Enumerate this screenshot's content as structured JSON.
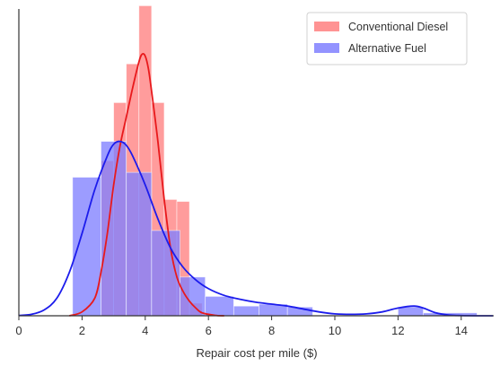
{
  "chart_data": {
    "type": "histogram_kde",
    "xlabel": "Repair cost per mile ($)",
    "ylabel": "",
    "xlim": [
      0,
      15
    ],
    "x_ticks": [
      0,
      2,
      4,
      6,
      8,
      10,
      12,
      14
    ],
    "grid": false,
    "legend_placement": "top-right",
    "series": [
      {
        "name": "Conventional Diesel",
        "hist_color": "#ff8080",
        "kde_color": "#e8191c",
        "bins": [
          {
            "x0": 2.6,
            "x1": 3.0,
            "height": 0.16
          },
          {
            "x0": 3.0,
            "x1": 3.4,
            "height": 0.22
          },
          {
            "x0": 3.4,
            "x1": 3.8,
            "height": 0.26
          },
          {
            "x0": 3.8,
            "x1": 4.2,
            "height": 0.32
          },
          {
            "x0": 4.2,
            "x1": 4.6,
            "height": 0.22
          },
          {
            "x0": 4.6,
            "x1": 5.0,
            "height": 0.12
          },
          {
            "x0": 5.0,
            "x1": 5.4,
            "height": 0.118
          },
          {
            "x0": 5.4,
            "x1": 5.8,
            "height": 0.013
          }
        ],
        "kde": [
          [
            1.6,
            0
          ],
          [
            2.0,
            0.004
          ],
          [
            2.4,
            0.018
          ],
          [
            2.6,
            0.045
          ],
          [
            2.8,
            0.085
          ],
          [
            3.0,
            0.135
          ],
          [
            3.2,
            0.175
          ],
          [
            3.4,
            0.205
          ],
          [
            3.6,
            0.235
          ],
          [
            3.8,
            0.262
          ],
          [
            3.9,
            0.27
          ],
          [
            4.0,
            0.268
          ],
          [
            4.1,
            0.255
          ],
          [
            4.2,
            0.232
          ],
          [
            4.4,
            0.18
          ],
          [
            4.6,
            0.12
          ],
          [
            4.8,
            0.07
          ],
          [
            5.0,
            0.04
          ],
          [
            5.2,
            0.025
          ],
          [
            5.4,
            0.015
          ],
          [
            5.6,
            0.008
          ],
          [
            5.8,
            0.003
          ],
          [
            6.2,
            0.0005
          ],
          [
            6.5,
            0
          ]
        ]
      },
      {
        "name": "Alternative Fuel",
        "hist_color": "#8080ff",
        "kde_color": "#1c1cec",
        "bins": [
          {
            "x0": 1.7,
            "x1": 2.6,
            "height": 0.143
          },
          {
            "x0": 2.6,
            "x1": 3.4,
            "height": 0.18
          },
          {
            "x0": 3.4,
            "x1": 4.2,
            "height": 0.148
          },
          {
            "x0": 4.2,
            "x1": 5.1,
            "height": 0.088
          },
          {
            "x0": 5.1,
            "x1": 5.9,
            "height": 0.04
          },
          {
            "x0": 5.9,
            "x1": 6.8,
            "height": 0.02
          },
          {
            "x0": 6.8,
            "x1": 7.6,
            "height": 0.01
          },
          {
            "x0": 7.6,
            "x1": 8.5,
            "height": 0.012
          },
          {
            "x0": 8.5,
            "x1": 9.3,
            "height": 0.009
          },
          {
            "x0": 12.0,
            "x1": 12.8,
            "height": 0.009
          },
          {
            "x0": 12.8,
            "x1": 14.5,
            "height": 0.003
          }
        ],
        "kde": [
          [
            0,
            0.0003
          ],
          [
            0.4,
            0.0015
          ],
          [
            0.8,
            0.006
          ],
          [
            1.2,
            0.018
          ],
          [
            1.6,
            0.045
          ],
          [
            2.0,
            0.085
          ],
          [
            2.4,
            0.13
          ],
          [
            2.8,
            0.165
          ],
          [
            3.0,
            0.177
          ],
          [
            3.2,
            0.18
          ],
          [
            3.4,
            0.176
          ],
          [
            3.6,
            0.165
          ],
          [
            4.0,
            0.135
          ],
          [
            4.4,
            0.1
          ],
          [
            4.8,
            0.07
          ],
          [
            5.2,
            0.05
          ],
          [
            5.6,
            0.037
          ],
          [
            6.0,
            0.028
          ],
          [
            6.5,
            0.021
          ],
          [
            7.0,
            0.017
          ],
          [
            7.5,
            0.014
          ],
          [
            8.0,
            0.012
          ],
          [
            8.5,
            0.01
          ],
          [
            9.0,
            0.007
          ],
          [
            9.5,
            0.004
          ],
          [
            10.0,
            0.002
          ],
          [
            10.5,
            0.0015
          ],
          [
            11.0,
            0.002
          ],
          [
            11.5,
            0.004
          ],
          [
            12.0,
            0.008
          ],
          [
            12.5,
            0.01
          ],
          [
            12.8,
            0.008
          ],
          [
            13.2,
            0.003
          ],
          [
            13.6,
            0.0008
          ],
          [
            14.0,
            0.0002
          ],
          [
            14.5,
            0
          ],
          [
            15.0,
            0
          ]
        ]
      }
    ]
  }
}
